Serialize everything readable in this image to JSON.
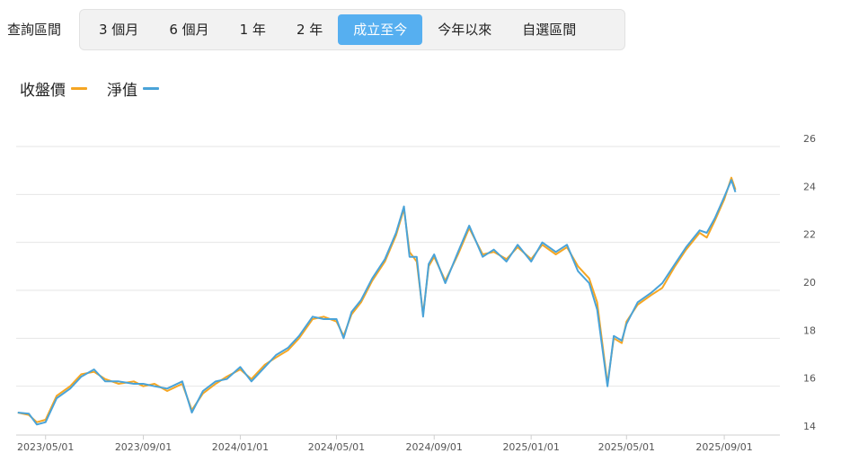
{
  "range_selector": {
    "label": "查詢區間",
    "options": [
      "3 個月",
      "6 個月",
      "1 年",
      "2 年",
      "成立至今",
      "今年以來",
      "自選區間"
    ],
    "active_index": 4,
    "active_color": "#56aff0"
  },
  "chart_data": {
    "type": "line",
    "title": "",
    "xlabel": "",
    "ylabel": "",
    "ylim": [
      14,
      26
    ],
    "yticks": [
      14,
      16,
      18,
      20,
      22,
      24,
      26
    ],
    "xlim": [
      "2023-03-25",
      "2025-11-10"
    ],
    "xticks": [
      "2023/05/01",
      "2023/09/01",
      "2024/01/01",
      "2024/05/01",
      "2024/09/01",
      "2025/01/01",
      "2025/05/01",
      "2025/09/01"
    ],
    "grid": true,
    "legend_position": "top-left",
    "series": [
      {
        "name": "收盤價",
        "color": "#f5a623",
        "points": [
          [
            "2023-03-27",
            14.9
          ],
          [
            "2023-04-10",
            14.8
          ],
          [
            "2023-04-20",
            14.5
          ],
          [
            "2023-05-01",
            14.6
          ],
          [
            "2023-05-15",
            15.6
          ],
          [
            "2023-06-01",
            16.0
          ],
          [
            "2023-06-15",
            16.5
          ],
          [
            "2023-07-01",
            16.6
          ],
          [
            "2023-07-15",
            16.3
          ],
          [
            "2023-08-01",
            16.1
          ],
          [
            "2023-08-20",
            16.2
          ],
          [
            "2023-09-01",
            16.0
          ],
          [
            "2023-09-15",
            16.1
          ],
          [
            "2023-10-01",
            15.8
          ],
          [
            "2023-10-20",
            16.1
          ],
          [
            "2023-11-01",
            15.0
          ],
          [
            "2023-11-15",
            15.7
          ],
          [
            "2023-12-01",
            16.1
          ],
          [
            "2023-12-15",
            16.4
          ],
          [
            "2024-01-01",
            16.7
          ],
          [
            "2024-01-15",
            16.3
          ],
          [
            "2024-02-01",
            16.9
          ],
          [
            "2024-02-15",
            17.2
          ],
          [
            "2024-03-01",
            17.5
          ],
          [
            "2024-03-15",
            18.0
          ],
          [
            "2024-04-01",
            18.8
          ],
          [
            "2024-04-15",
            18.9
          ],
          [
            "2024-05-01",
            18.7
          ],
          [
            "2024-05-10",
            18.1
          ],
          [
            "2024-05-20",
            19.0
          ],
          [
            "2024-06-01",
            19.5
          ],
          [
            "2024-06-15",
            20.4
          ],
          [
            "2024-07-01",
            21.2
          ],
          [
            "2024-07-15",
            22.3
          ],
          [
            "2024-07-25",
            23.4
          ],
          [
            "2024-08-01",
            21.6
          ],
          [
            "2024-08-10",
            21.2
          ],
          [
            "2024-08-18",
            19.0
          ],
          [
            "2024-08-25",
            21.0
          ],
          [
            "2024-09-01",
            21.4
          ],
          [
            "2024-09-15",
            20.4
          ],
          [
            "2024-10-01",
            21.5
          ],
          [
            "2024-10-15",
            22.6
          ],
          [
            "2024-11-01",
            21.5
          ],
          [
            "2024-11-15",
            21.6
          ],
          [
            "2024-12-01",
            21.3
          ],
          [
            "2024-12-15",
            21.8
          ],
          [
            "2025-01-01",
            21.3
          ],
          [
            "2025-01-15",
            21.9
          ],
          [
            "2025-02-01",
            21.5
          ],
          [
            "2025-02-15",
            21.8
          ],
          [
            "2025-03-01",
            21.0
          ],
          [
            "2025-03-15",
            20.5
          ],
          [
            "2025-03-25",
            19.5
          ],
          [
            "2025-04-07",
            16.1
          ],
          [
            "2025-04-15",
            18.0
          ],
          [
            "2025-04-25",
            17.8
          ],
          [
            "2025-05-01",
            18.7
          ],
          [
            "2025-05-15",
            19.4
          ],
          [
            "2025-06-01",
            19.8
          ],
          [
            "2025-06-15",
            20.1
          ],
          [
            "2025-07-01",
            21.0
          ],
          [
            "2025-07-15",
            21.7
          ],
          [
            "2025-08-01",
            22.4
          ],
          [
            "2025-08-10",
            22.2
          ],
          [
            "2025-08-20",
            22.9
          ],
          [
            "2025-09-01",
            23.8
          ],
          [
            "2025-09-10",
            24.7
          ],
          [
            "2025-09-15",
            24.2
          ]
        ]
      },
      {
        "name": "淨值",
        "color": "#4aa3d8",
        "points": [
          [
            "2023-03-27",
            14.9
          ],
          [
            "2023-04-10",
            14.85
          ],
          [
            "2023-04-20",
            14.4
          ],
          [
            "2023-05-01",
            14.5
          ],
          [
            "2023-05-15",
            15.5
          ],
          [
            "2023-06-01",
            15.9
          ],
          [
            "2023-06-15",
            16.4
          ],
          [
            "2023-07-01",
            16.7
          ],
          [
            "2023-07-15",
            16.2
          ],
          [
            "2023-08-01",
            16.2
          ],
          [
            "2023-08-20",
            16.1
          ],
          [
            "2023-09-01",
            16.1
          ],
          [
            "2023-09-15",
            16.0
          ],
          [
            "2023-10-01",
            15.9
          ],
          [
            "2023-10-20",
            16.2
          ],
          [
            "2023-11-01",
            14.9
          ],
          [
            "2023-11-15",
            15.8
          ],
          [
            "2023-12-01",
            16.2
          ],
          [
            "2023-12-15",
            16.3
          ],
          [
            "2024-01-01",
            16.8
          ],
          [
            "2024-01-15",
            16.2
          ],
          [
            "2024-02-01",
            16.8
          ],
          [
            "2024-02-15",
            17.3
          ],
          [
            "2024-03-01",
            17.6
          ],
          [
            "2024-03-15",
            18.1
          ],
          [
            "2024-04-01",
            18.9
          ],
          [
            "2024-04-15",
            18.8
          ],
          [
            "2024-05-01",
            18.8
          ],
          [
            "2024-05-10",
            18.0
          ],
          [
            "2024-05-20",
            19.1
          ],
          [
            "2024-06-01",
            19.6
          ],
          [
            "2024-06-15",
            20.5
          ],
          [
            "2024-07-01",
            21.3
          ],
          [
            "2024-07-15",
            22.4
          ],
          [
            "2024-07-25",
            23.5
          ],
          [
            "2024-08-01",
            21.4
          ],
          [
            "2024-08-10",
            21.4
          ],
          [
            "2024-08-18",
            18.9
          ],
          [
            "2024-08-25",
            21.1
          ],
          [
            "2024-09-01",
            21.5
          ],
          [
            "2024-09-15",
            20.3
          ],
          [
            "2024-10-01",
            21.6
          ],
          [
            "2024-10-15",
            22.7
          ],
          [
            "2024-11-01",
            21.4
          ],
          [
            "2024-11-15",
            21.7
          ],
          [
            "2024-12-01",
            21.2
          ],
          [
            "2024-12-15",
            21.9
          ],
          [
            "2025-01-01",
            21.2
          ],
          [
            "2025-01-15",
            22.0
          ],
          [
            "2025-02-01",
            21.6
          ],
          [
            "2025-02-15",
            21.9
          ],
          [
            "2025-03-01",
            20.8
          ],
          [
            "2025-03-15",
            20.3
          ],
          [
            "2025-03-25",
            19.2
          ],
          [
            "2025-04-07",
            16.0
          ],
          [
            "2025-04-15",
            18.1
          ],
          [
            "2025-04-25",
            17.9
          ],
          [
            "2025-05-01",
            18.6
          ],
          [
            "2025-05-15",
            19.5
          ],
          [
            "2025-06-01",
            19.9
          ],
          [
            "2025-06-15",
            20.3
          ],
          [
            "2025-07-01",
            21.1
          ],
          [
            "2025-07-15",
            21.8
          ],
          [
            "2025-08-01",
            22.5
          ],
          [
            "2025-08-10",
            22.4
          ],
          [
            "2025-08-20",
            23.0
          ],
          [
            "2025-09-01",
            23.9
          ],
          [
            "2025-09-10",
            24.6
          ],
          [
            "2025-09-15",
            24.1
          ]
        ]
      }
    ]
  }
}
